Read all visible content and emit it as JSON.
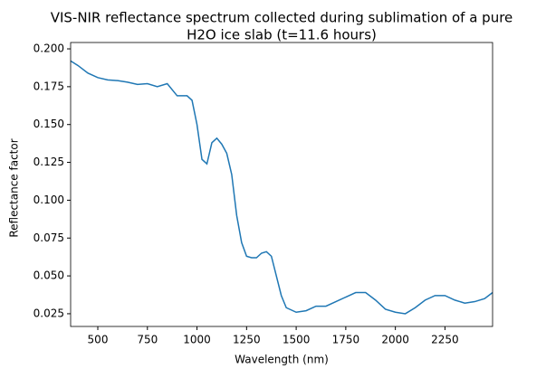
{
  "chart_data": {
    "type": "line",
    "title": [
      "VIS-NIR reflectance spectrum collected during sublimation of a pure",
      "H2O ice slab (t=11.6 hours)"
    ],
    "x_label": "Wavelength (nm)",
    "y_label": "Reflectance factor",
    "x": [
      363,
      400,
      450,
      500,
      550,
      600,
      650,
      700,
      750,
      800,
      850,
      900,
      950,
      975,
      1000,
      1025,
      1050,
      1075,
      1100,
      1125,
      1150,
      1175,
      1200,
      1225,
      1250,
      1275,
      1300,
      1325,
      1350,
      1375,
      1400,
      1425,
      1450,
      1500,
      1550,
      1600,
      1650,
      1700,
      1750,
      1800,
      1850,
      1900,
      1950,
      2000,
      2050,
      2100,
      2150,
      2200,
      2250,
      2300,
      2350,
      2400,
      2450,
      2490
    ],
    "series": [
      {
        "color": "#1f77b4",
        "values": [
          0.192,
          0.189,
          0.184,
          0.181,
          0.1795,
          0.179,
          0.178,
          0.1765,
          0.177,
          0.175,
          0.177,
          0.169,
          0.169,
          0.166,
          0.15,
          0.127,
          0.124,
          0.138,
          0.141,
          0.137,
          0.131,
          0.117,
          0.09,
          0.072,
          0.063,
          0.062,
          0.062,
          0.065,
          0.066,
          0.063,
          0.05,
          0.037,
          0.029,
          0.026,
          0.027,
          0.03,
          0.03,
          0.033,
          0.036,
          0.039,
          0.039,
          0.034,
          0.028,
          0.026,
          0.025,
          0.029,
          0.034,
          0.037,
          0.037,
          0.034,
          0.032,
          0.033,
          0.035,
          0.039
        ]
      }
    ],
    "xlim": [
      363,
      2490
    ],
    "ylim": [
      0.0166,
      0.2042
    ],
    "xticks": [
      500,
      750,
      1000,
      1250,
      1500,
      1750,
      2000,
      2250
    ],
    "yticks": [
      0.025,
      {
        "value": 0.05,
        "label": "0.050"
      },
      0.075,
      {
        "value": 0.1,
        "label": "0.100"
      },
      0.125,
      {
        "value": 0.15,
        "label": "0.150"
      },
      0.175,
      {
        "value": 0.2,
        "label": "0.200"
      }
    ]
  }
}
